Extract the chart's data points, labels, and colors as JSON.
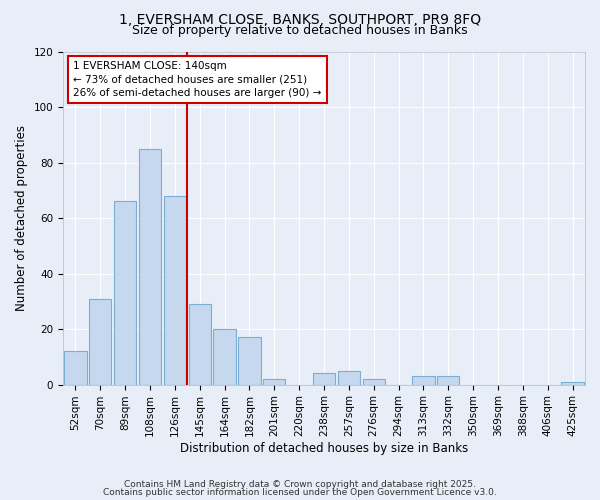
{
  "title_line1": "1, EVERSHAM CLOSE, BANKS, SOUTHPORT, PR9 8FQ",
  "title_line2": "Size of property relative to detached houses in Banks",
  "xlabel": "Distribution of detached houses by size in Banks",
  "ylabel": "Number of detached properties",
  "categories": [
    "52sqm",
    "70sqm",
    "89sqm",
    "108sqm",
    "126sqm",
    "145sqm",
    "164sqm",
    "182sqm",
    "201sqm",
    "220sqm",
    "238sqm",
    "257sqm",
    "276sqm",
    "294sqm",
    "313sqm",
    "332sqm",
    "350sqm",
    "369sqm",
    "388sqm",
    "406sqm",
    "425sqm"
  ],
  "values": [
    12,
    31,
    66,
    85,
    68,
    29,
    20,
    17,
    2,
    0,
    4,
    5,
    2,
    0,
    3,
    3,
    0,
    0,
    0,
    0,
    1
  ],
  "bar_color": "#c5d8ed",
  "bar_edge_color": "#7aaed4",
  "annotation_text": "1 EVERSHAM CLOSE: 140sqm\n← 73% of detached houses are smaller (251)\n26% of semi-detached houses are larger (90) →",
  "annotation_box_color": "#ffffff",
  "annotation_box_edge_color": "#cc0000",
  "vline_color": "#cc0000",
  "vline_x": 4.5,
  "ylim": [
    0,
    120
  ],
  "yticks": [
    0,
    20,
    40,
    60,
    80,
    100,
    120
  ],
  "background_color": "#e8eef7",
  "grid_color": "#ffffff",
  "footer_line1": "Contains HM Land Registry data © Crown copyright and database right 2025.",
  "footer_line2": "Contains public sector information licensed under the Open Government Licence v3.0.",
  "title_fontsize": 10,
  "subtitle_fontsize": 9,
  "axis_fontsize": 8.5,
  "tick_fontsize": 7.5,
  "annotation_fontsize": 7.5,
  "footer_fontsize": 6.5
}
